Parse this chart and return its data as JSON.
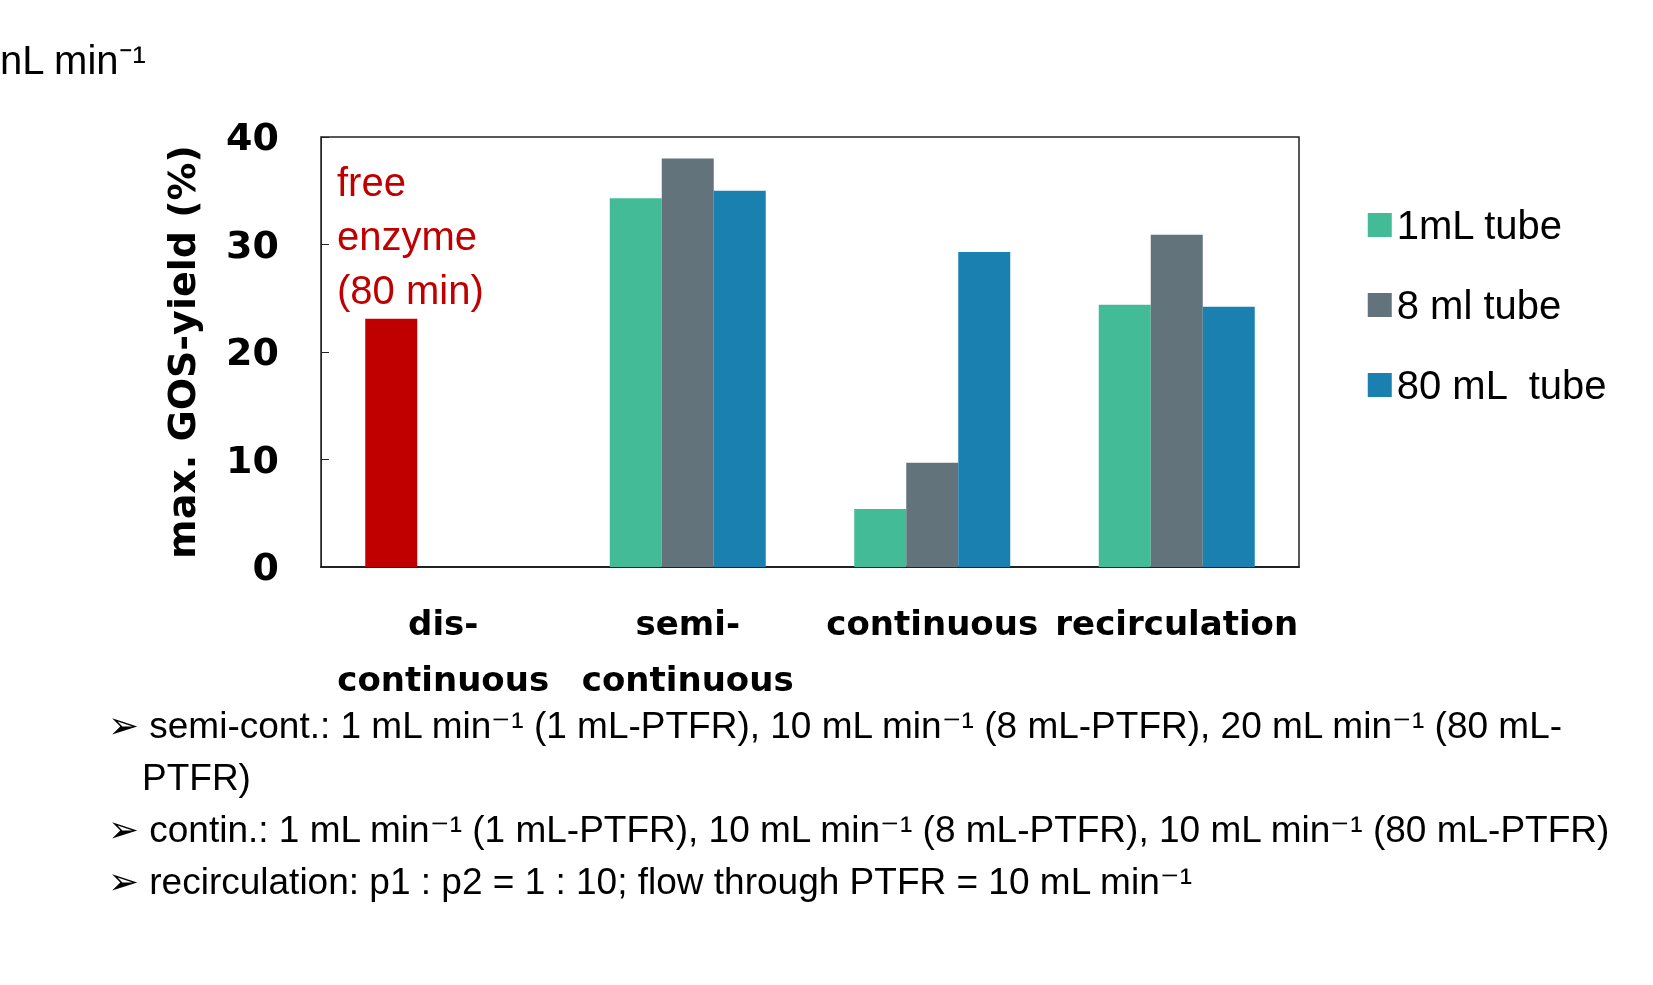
{
  "chart_data": {
    "type": "bar",
    "ylabel": "max. GOS-yield (%)",
    "categories": [
      "dis-continuous",
      "semi-continuous",
      "continuous",
      "recirculation"
    ],
    "series": [
      {
        "name": "free enzyme (80 min)",
        "color": "#c00000",
        "values": [
          23.1,
          null,
          null,
          null
        ]
      },
      {
        "name": "1mL tube",
        "color": "#43bb97",
        "values": [
          null,
          34.3,
          5.4,
          24.4
        ]
      },
      {
        "name": "8 ml tube",
        "color": "#63737c",
        "values": [
          null,
          38.0,
          9.7,
          30.9
        ]
      },
      {
        "name": "80 mL  tube",
        "color": "#1a80b0",
        "values": [
          null,
          35.0,
          29.3,
          24.2
        ]
      }
    ],
    "ylim": [
      0,
      40
    ],
    "yticks": [
      0,
      10,
      20,
      30,
      40
    ],
    "grid": false,
    "legend": "right",
    "annotations": [
      "nL min⁻¹",
      "➢ semi-cont.: 1 mL min⁻¹ (1 mL-PTFR), 10 mL min⁻¹ (8 mL-PTFR), 20 mL min⁻¹ (80 mL-PTFR)",
      "➢ contin.: 1 mL min⁻¹ (1 mL-PTFR), 10 mL min⁻¹ (8 mL-PTFR), 10 mL min⁻¹ (80 mL-PTFR)",
      "➢ recirculation:  p1 : p2 = 1 : 10; flow through PTFR = 10 mL min⁻¹"
    ]
  }
}
